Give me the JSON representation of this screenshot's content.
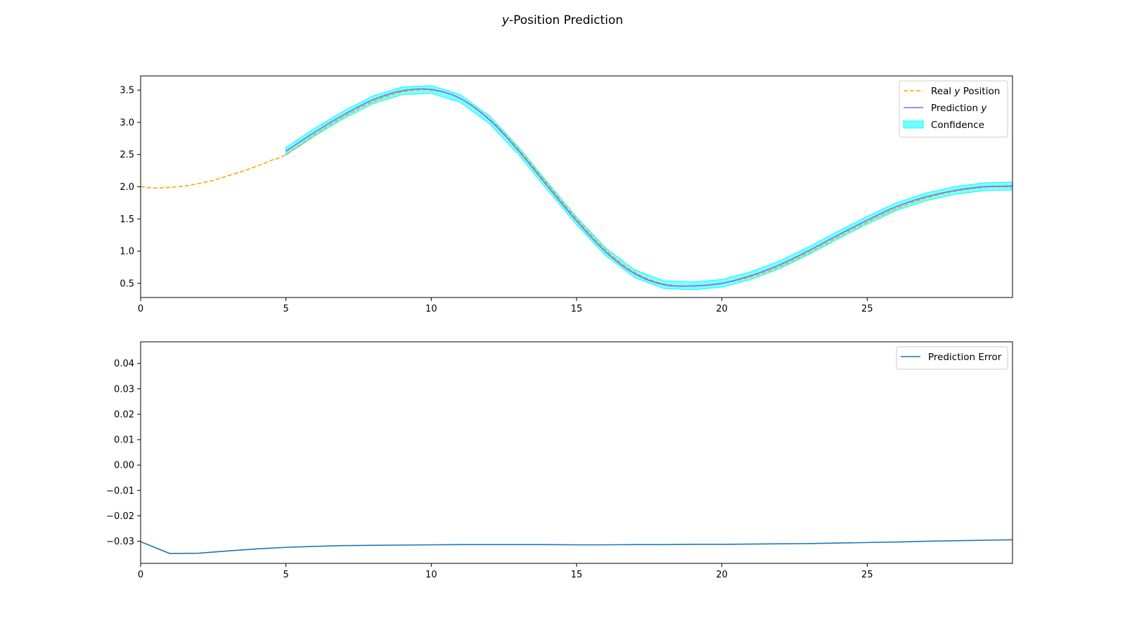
{
  "figure": {
    "title_var": "y",
    "title_rest": "-Position Prediction"
  },
  "colors": {
    "real": "#FFA500",
    "prediction": "#7070FF",
    "confidence": "#00FFFF",
    "error": "#1f77b4"
  },
  "chart_data": [
    {
      "type": "line",
      "xlim": [
        0,
        30
      ],
      "ylim": [
        0.28,
        3.72
      ],
      "xticks": [
        0,
        5,
        10,
        15,
        20,
        25
      ],
      "yticks": [
        0.5,
        1.0,
        1.5,
        2.0,
        2.5,
        3.0,
        3.5
      ],
      "xtick_labels": [
        "0",
        "5",
        "10",
        "15",
        "20",
        "25"
      ],
      "ytick_labels": [
        "0.5",
        "1.0",
        "1.5",
        "2.0",
        "2.5",
        "3.0",
        "3.5"
      ],
      "legend_position": "upper right",
      "legend": [
        {
          "text": "Real ",
          "var": "y",
          "suffix": " Position",
          "style": "dashed",
          "color_key": "real"
        },
        {
          "text": "Prediction ",
          "var": "y",
          "suffix": "",
          "style": "line",
          "color_key": "prediction"
        },
        {
          "text": "Confidence",
          "var": "",
          "suffix": "",
          "style": "patch",
          "color_key": "confidence"
        }
      ],
      "series": [
        {
          "name": "Real y Position",
          "style": "dashed",
          "x": [
            0,
            0.5,
            1,
            1.5,
            2,
            2.5,
            3,
            3.5,
            4,
            4.5,
            5,
            6,
            7,
            8,
            9,
            10,
            11,
            12,
            13,
            14,
            15,
            16,
            17,
            18,
            19,
            20,
            21,
            22,
            23,
            24,
            25,
            26,
            27,
            28,
            29,
            30
          ],
          "y": [
            2.0,
            1.98,
            1.99,
            2.01,
            2.05,
            2.1,
            2.17,
            2.24,
            2.32,
            2.41,
            2.5,
            2.81,
            3.09,
            3.32,
            3.47,
            3.5,
            3.37,
            3.05,
            2.58,
            2.04,
            1.5,
            1.02,
            0.67,
            0.49,
            0.46,
            0.5,
            0.6,
            0.76,
            0.98,
            1.22,
            1.45,
            1.66,
            1.82,
            1.93,
            1.99,
            2.0
          ]
        },
        {
          "name": "Prediction y",
          "style": "line",
          "x": [
            5,
            6,
            7,
            8,
            9,
            10,
            11,
            12,
            13,
            14,
            15,
            16,
            17,
            18,
            19,
            20,
            21,
            22,
            23,
            24,
            25,
            26,
            27,
            28,
            29,
            30
          ],
          "y": [
            2.55,
            2.85,
            3.12,
            3.35,
            3.49,
            3.51,
            3.37,
            3.04,
            2.56,
            2.01,
            1.47,
            0.99,
            0.65,
            0.48,
            0.46,
            0.5,
            0.62,
            0.79,
            1.01,
            1.25,
            1.48,
            1.69,
            1.84,
            1.94,
            2.0,
            2.01
          ]
        }
      ],
      "confidence_halfwidth": 0.06
    },
    {
      "type": "line",
      "xlim": [
        0,
        30
      ],
      "ylim": [
        -0.0387,
        0.0485
      ],
      "xticks": [
        0,
        5,
        10,
        15,
        20,
        25
      ],
      "yticks": [
        -0.03,
        -0.02,
        -0.01,
        0.0,
        0.01,
        0.02,
        0.03,
        0.04
      ],
      "xtick_labels": [
        "0",
        "5",
        "10",
        "15",
        "20",
        "25"
      ],
      "ytick_labels": [
        "−0.03",
        "−0.02",
        "−0.01",
        "0.00",
        "0.01",
        "0.02",
        "0.03",
        "0.04"
      ],
      "legend_position": "upper right",
      "legend": [
        {
          "text": "Prediction Error",
          "var": "",
          "suffix": "",
          "style": "line",
          "color_key": "error"
        }
      ],
      "series": [
        {
          "name": "Prediction Error",
          "style": "line",
          "x": [
            0,
            1,
            2,
            3,
            4,
            5,
            6,
            7,
            8,
            9,
            10,
            11,
            12,
            13,
            14,
            15,
            16,
            17,
            18,
            19,
            20,
            21,
            22,
            23,
            24,
            25,
            26,
            27,
            28,
            29,
            30
          ],
          "y": [
            -0.0302,
            -0.0348,
            -0.0347,
            -0.0338,
            -0.033,
            -0.0324,
            -0.032,
            -0.0317,
            -0.0316,
            -0.0315,
            -0.0314,
            -0.0313,
            -0.0313,
            -0.0313,
            -0.0313,
            -0.0314,
            -0.0314,
            -0.0313,
            -0.0313,
            -0.0312,
            -0.0312,
            -0.0311,
            -0.031,
            -0.0309,
            -0.0307,
            -0.0305,
            -0.0303,
            -0.03,
            -0.0298,
            -0.0296,
            -0.0294
          ]
        }
      ]
    }
  ]
}
